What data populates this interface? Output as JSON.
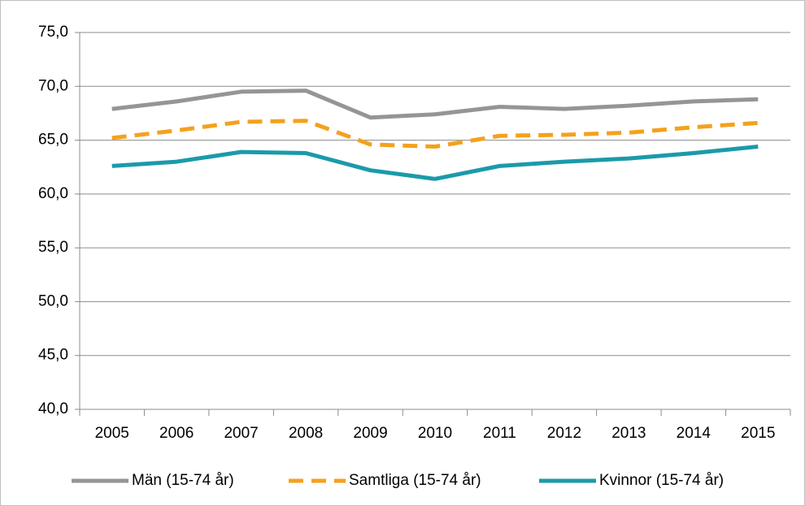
{
  "chart_data": {
    "type": "line",
    "categories": [
      "2005",
      "2006",
      "2007",
      "2008",
      "2009",
      "2010",
      "2011",
      "2012",
      "2013",
      "2014",
      "2015"
    ],
    "series": [
      {
        "name": "Män (15-74 år)",
        "color": "#959595",
        "style": "solid",
        "values": [
          67.9,
          68.6,
          69.5,
          69.6,
          67.1,
          67.4,
          68.1,
          67.9,
          68.2,
          68.6,
          68.8
        ]
      },
      {
        "name": "Samtliga (15-74 år)",
        "color": "#f4a11d",
        "style": "dashed",
        "values": [
          65.2,
          65.9,
          66.7,
          66.8,
          64.6,
          64.4,
          65.4,
          65.5,
          65.7,
          66.2,
          66.6
        ]
      },
      {
        "name": "Kvinnor (15-74 år)",
        "color": "#1b9aaa",
        "style": "solid",
        "values": [
          62.6,
          63.0,
          63.9,
          63.8,
          62.2,
          61.4,
          62.6,
          63.0,
          63.3,
          63.8,
          64.4
        ]
      }
    ],
    "ylim": [
      40,
      75
    ],
    "yticks": [
      {
        "value": 40,
        "label": "40,0"
      },
      {
        "value": 45,
        "label": "45,0"
      },
      {
        "value": 50,
        "label": "50,0"
      },
      {
        "value": 55,
        "label": "55,0"
      },
      {
        "value": 60,
        "label": "60,0"
      },
      {
        "value": 65,
        "label": "65,0"
      },
      {
        "value": 70,
        "label": "70,0"
      },
      {
        "value": 75,
        "label": "75,0"
      }
    ],
    "grid": true,
    "legend": "bottom"
  }
}
